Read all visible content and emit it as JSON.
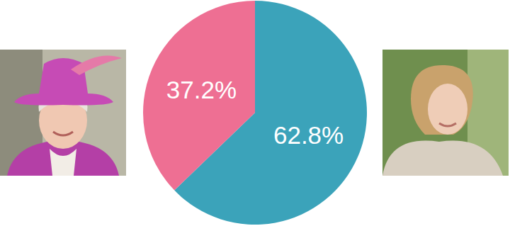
{
  "chart_data": {
    "type": "pie",
    "values": [
      62.8,
      37.2
    ],
    "value_labels": [
      "62.8%",
      "37.2%"
    ],
    "colors": [
      "#3ba3ba",
      "#ee6f93"
    ],
    "data_labels": true
  }
}
